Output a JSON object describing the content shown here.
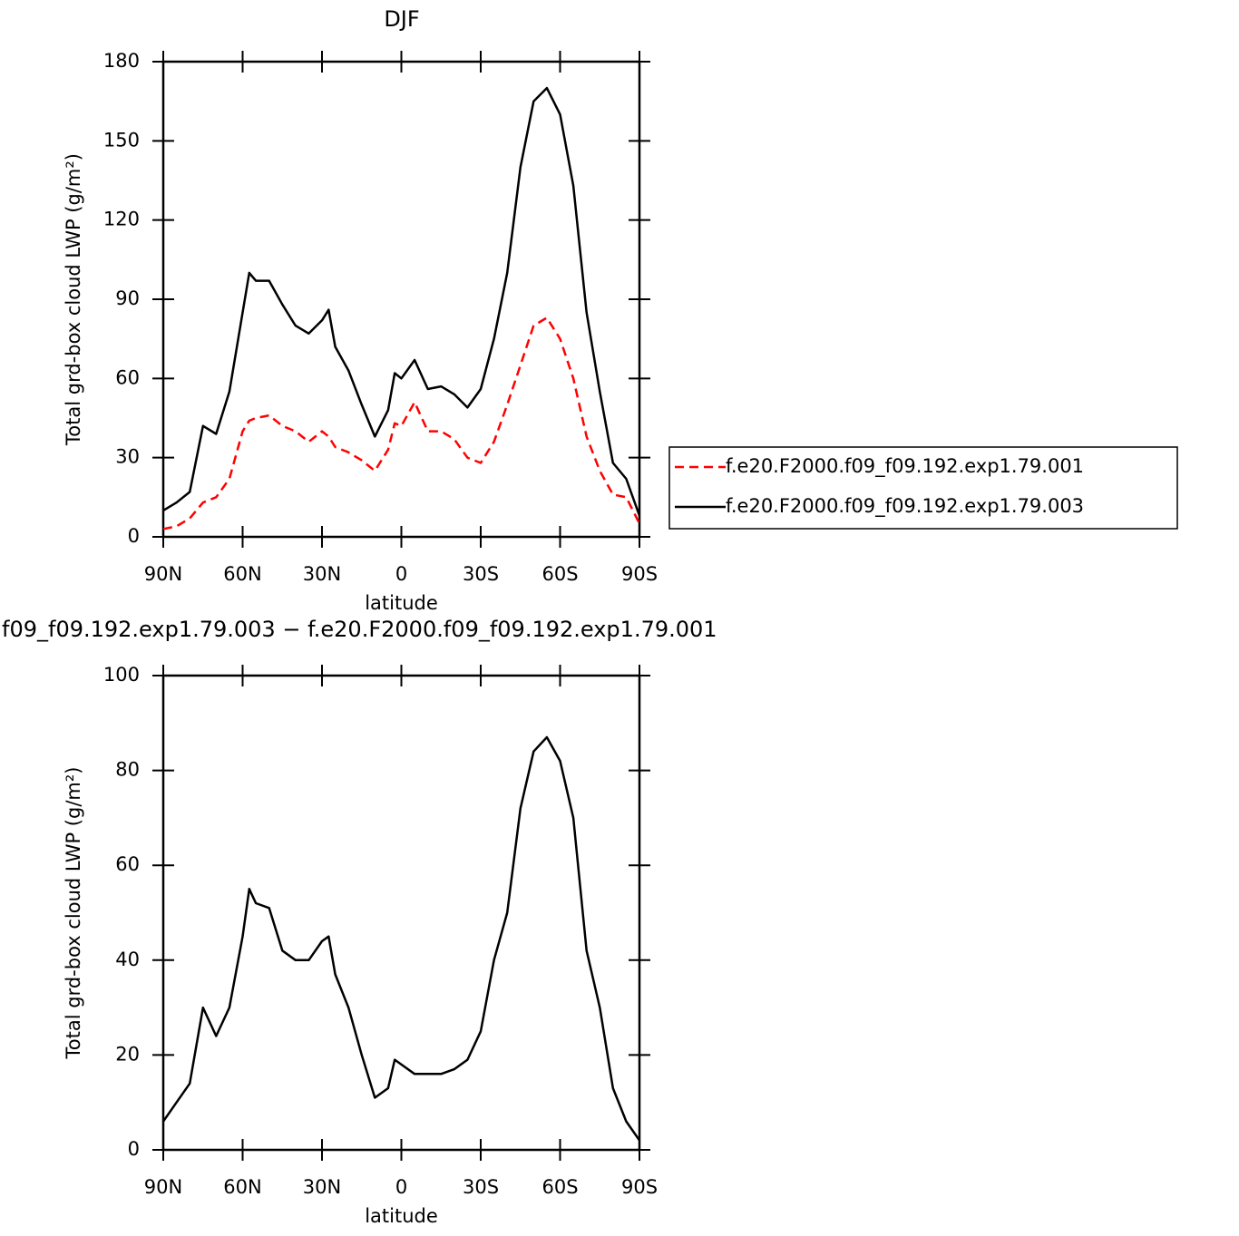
{
  "chart_data": [
    {
      "type": "line",
      "title": "DJF",
      "xlabel": "latitude",
      "ylabel": "Total grd-box cloud LWP (g/m²)",
      "x": [
        90,
        85,
        80,
        75,
        70,
        65,
        60,
        57.5,
        55,
        50,
        45,
        40,
        35,
        30,
        27.5,
        25,
        20,
        15,
        10,
        5,
        2.5,
        0,
        -5,
        -10,
        -15,
        -20,
        -25,
        -30,
        -35,
        -40,
        -45,
        -50,
        -55,
        -60,
        -65,
        -70,
        -75,
        -80,
        -85,
        -90
      ],
      "series": [
        {
          "name": "f.e20.F2000.f09_f09.192.exp1.79.001",
          "color": "#ff0000",
          "dashed": true,
          "values": [
            3,
            4,
            7,
            13,
            15,
            22,
            40,
            44,
            45,
            46,
            42,
            40,
            36,
            40,
            38,
            34,
            32,
            29,
            25,
            33,
            43,
            42,
            51,
            40,
            40,
            37,
            30,
            28,
            36,
            50,
            65,
            80,
            83,
            75,
            60,
            38,
            25,
            16,
            15,
            5
          ]
        },
        {
          "name": "f.e20.F2000.f09_f09.192.exp1.79.003",
          "color": "#000000",
          "dashed": false,
          "values": [
            10,
            13,
            17,
            42,
            39,
            55,
            85,
            100,
            97,
            97,
            88,
            80,
            77,
            82,
            86,
            72,
            63,
            50,
            38,
            48,
            62,
            60,
            67,
            56,
            57,
            54,
            49,
            56,
            75,
            100,
            140,
            165,
            170,
            160,
            133,
            85,
            55,
            28,
            22,
            8
          ]
        }
      ],
      "xlim": [
        90,
        -90
      ],
      "xticks": [
        {
          "value": 90,
          "label": "90N"
        },
        {
          "value": 60,
          "label": "60N"
        },
        {
          "value": 30,
          "label": "30N"
        },
        0,
        {
          "value": -30,
          "label": "30S"
        },
        {
          "value": -60,
          "label": "60S"
        },
        {
          "value": -90,
          "label": "90S"
        }
      ],
      "ylim": [
        0,
        180
      ],
      "yticks": [
        0,
        30,
        60,
        90,
        120,
        150,
        180
      ],
      "legend": "right"
    },
    {
      "type": "line",
      "title": "f09_f09.192.exp1.79.003 − f.e20.F2000.f09_f09.192.exp1.79.001",
      "xlabel": "latitude",
      "ylabel": "Total grd-box cloud LWP (g/m²)",
      "x": [
        90,
        85,
        80,
        75,
        70,
        65,
        60,
        57.5,
        55,
        50,
        45,
        40,
        35,
        30,
        27.5,
        25,
        20,
        15,
        10,
        5,
        2.5,
        0,
        -5,
        -10,
        -15,
        -20,
        -25,
        -30,
        -35,
        -40,
        -45,
        -50,
        -55,
        -60,
        -65,
        -70,
        -75,
        -80,
        -85,
        -90
      ],
      "series": [
        {
          "color": "#000000",
          "dashed": false,
          "values": [
            6,
            10,
            14,
            30,
            24,
            30,
            45,
            55,
            52,
            51,
            42,
            40,
            40,
            44,
            45,
            37,
            30,
            20,
            11,
            13,
            19,
            18,
            16,
            16,
            16,
            17,
            19,
            25,
            40,
            50,
            72,
            84,
            87,
            82,
            70,
            42,
            30,
            13,
            6,
            2
          ]
        }
      ],
      "xlim": [
        90,
        -90
      ],
      "xticks": [
        {
          "value": 90,
          "label": "90N"
        },
        {
          "value": 60,
          "label": "60N"
        },
        {
          "value": 30,
          "label": "30N"
        },
        0,
        {
          "value": -30,
          "label": "30S"
        },
        {
          "value": -60,
          "label": "60S"
        },
        {
          "value": -90,
          "label": "90S"
        }
      ],
      "ylim": [
        0,
        100
      ],
      "yticks": [
        0,
        20,
        40,
        60,
        80,
        100
      ]
    }
  ]
}
